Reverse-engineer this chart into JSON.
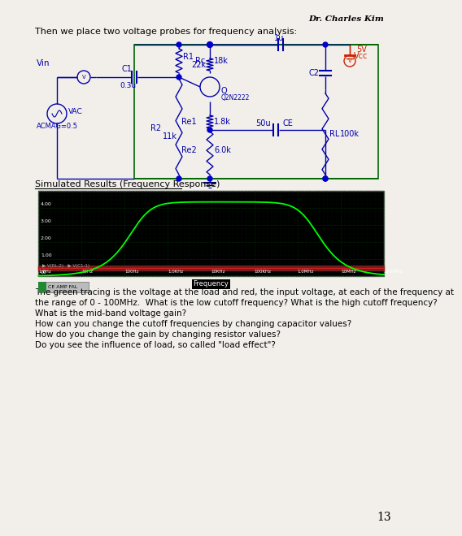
{
  "title_author": "Dr. Charles Kim",
  "intro_text": "Then we place two voltage probes for frequency analysis:",
  "simulated_label": "Simulated Results (Frequency Response)",
  "body_text": [
    "The green tracing is the voltage at the load and red, the input voltage, at each of the frequency at",
    "the range of 0 - 100MHz.  What is the low cutoff frequency? What is the high cutoff frequency?",
    "What is the mid-band voltage gain?",
    "How can you change the cutoff frequencies by changing capacitor values?",
    "How do you change the gain by changing resistor values?",
    "Do you see the influence of load, so called \"load effect\"?"
  ],
  "page_number": "13",
  "bg_color": "#f2efea",
  "plot_bg": "#000000",
  "plot_grid_color": "#004400",
  "green_line": "#00ff00",
  "red_line": "#cc2222",
  "red_fill": "#882222",
  "freq_labels": [
    "1.0Hz",
    "10Hz",
    "100Hz",
    "1.0KHz",
    "10KHz",
    "100KHz",
    "1.0MHz",
    "10MHz",
    "100MHz"
  ],
  "y_labels": [
    "00",
    "1.00",
    "2.00",
    "3.00",
    "4.00"
  ],
  "tab_label": "CE AMP FAL",
  "wire_color": "#0000aa",
  "circuit_border": "#006600",
  "vcc_color": "#cc2200",
  "node_color": "#0000cc"
}
